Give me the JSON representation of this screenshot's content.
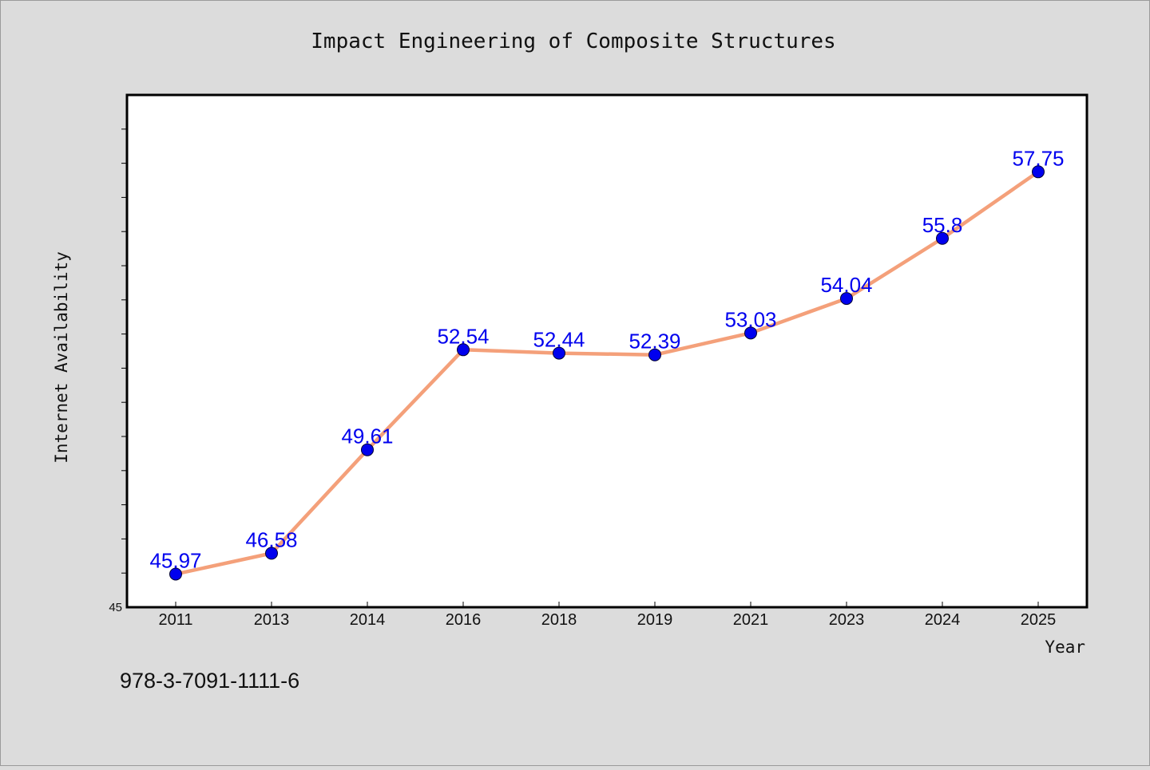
{
  "isbn": "978-3-7091-1111-6",
  "chart_data": {
    "type": "line",
    "title": "Impact Engineering of Composite Structures",
    "xlabel": "Year",
    "ylabel": "Internet Availability",
    "categories": [
      "2011",
      "2013",
      "2014",
      "2016",
      "2018",
      "2019",
      "2021",
      "2023",
      "2024",
      "2025"
    ],
    "series": [
      {
        "values": [
          45.97,
          46.58,
          49.61,
          52.54,
          52.44,
          52.39,
          53.03,
          54.04,
          55.8,
          57.75
        ],
        "labels": [
          "45.97",
          "46.58",
          "49.61",
          "52.54",
          "52.44",
          "52.39",
          "53.03",
          "54.04",
          "55.8",
          "57.75"
        ]
      }
    ],
    "ylim": [
      45,
      60
    ],
    "y_tick_labels": [
      "45"
    ],
    "grid": false,
    "colors": {
      "line": "#f4a07a",
      "marker": "#0000ee",
      "label": "#0000ee",
      "plot_bg": "#ffffff",
      "page_bg": "#dcdcdc",
      "frame": "#000000"
    }
  }
}
